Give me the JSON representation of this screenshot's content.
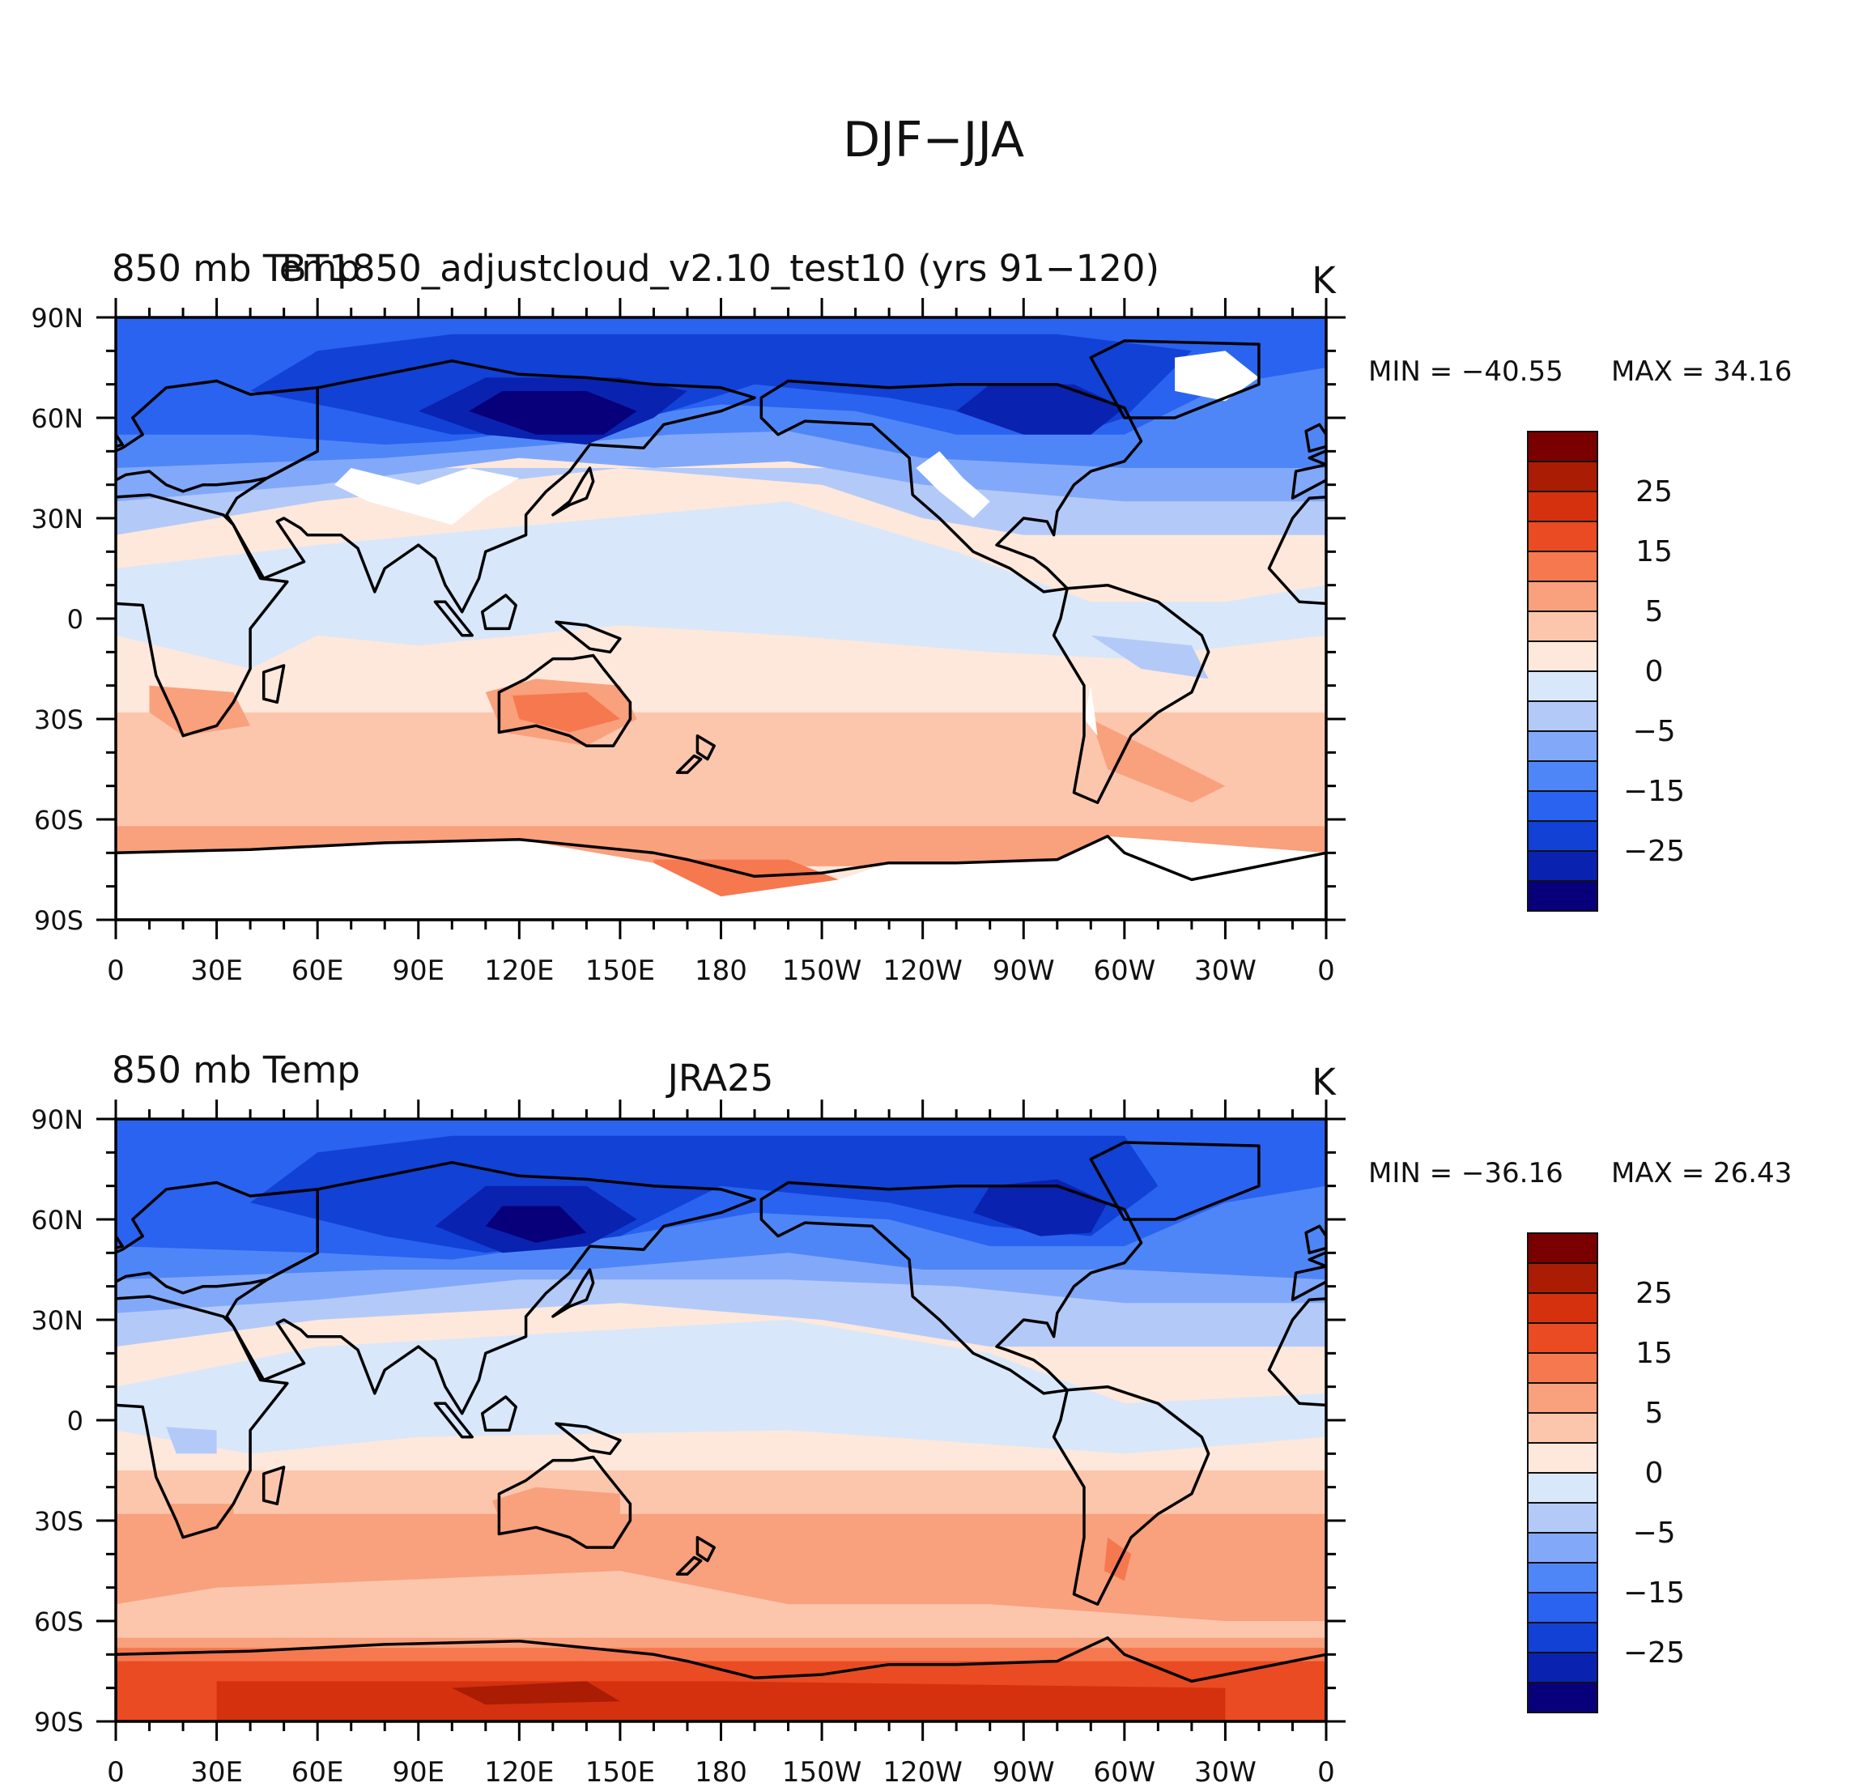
{
  "title": "DJF−JJA",
  "colors": {
    "levels": [
      "#08007a",
      "#0a22b0",
      "#1241d6",
      "#2a63f0",
      "#4f86f7",
      "#82a9f9",
      "#b3caf9",
      "#d9e7fb",
      "#fde8db",
      "#fcc6ad",
      "#f9a07c",
      "#f6784f",
      "#ea4b22",
      "#d5310f",
      "#aa1c04",
      "#7a0000"
    ],
    "land_outline": "#000000",
    "missing": "#ffffff"
  },
  "chart_data": [
    {
      "type": "heatmap",
      "left_title": "850  mb  Temp",
      "center_title": "BT1850_adjustcloud_v2.10_test10 (yrs 91−120)",
      "units": "K",
      "min_label": "MIN  =  −40.55",
      "max_label": "MAX  =   34.16",
      "min": -40.55,
      "max": 34.16,
      "x_ticks": [
        "0",
        "30E",
        "60E",
        "90E",
        "120E",
        "150E",
        "180",
        "150W",
        "120W",
        "90W",
        "60W",
        "30W",
        "0"
      ],
      "y_ticks": [
        "90N",
        "60N",
        "30N",
        "0",
        "30S",
        "60S",
        "90S"
      ],
      "xlim": [
        0,
        360
      ],
      "ylim": [
        -90,
        90
      ],
      "colorbar_labels": [
        "25",
        "15",
        "5",
        "0",
        "−5",
        "−15",
        "−25"
      ],
      "colorbar_levels": [
        -35,
        -30,
        -25,
        -20,
        -15,
        -10,
        -5,
        -2,
        0,
        2,
        5,
        10,
        15,
        20,
        25,
        30
      ],
      "has_missing_regions": true
    },
    {
      "type": "heatmap",
      "left_title": "850  mb  Temp",
      "center_title": "JRA25",
      "units": "K",
      "min_label": "MIN  =  −36.16",
      "max_label": "MAX  =   26.43",
      "min": -36.16,
      "max": 26.43,
      "x_ticks": [
        "0",
        "30E",
        "60E",
        "90E",
        "120E",
        "150E",
        "180",
        "150W",
        "120W",
        "90W",
        "60W",
        "30W",
        "0"
      ],
      "y_ticks": [
        "90N",
        "60N",
        "30N",
        "0",
        "30S",
        "60S",
        "90S"
      ],
      "xlim": [
        0,
        360
      ],
      "ylim": [
        -90,
        90
      ],
      "colorbar_labels": [
        "25",
        "15",
        "5",
        "0",
        "−5",
        "−15",
        "−25"
      ],
      "colorbar_levels": [
        -35,
        -30,
        -25,
        -20,
        -15,
        -10,
        -5,
        -2,
        0,
        2,
        5,
        10,
        15,
        20,
        25,
        30
      ],
      "has_missing_regions": false
    }
  ]
}
